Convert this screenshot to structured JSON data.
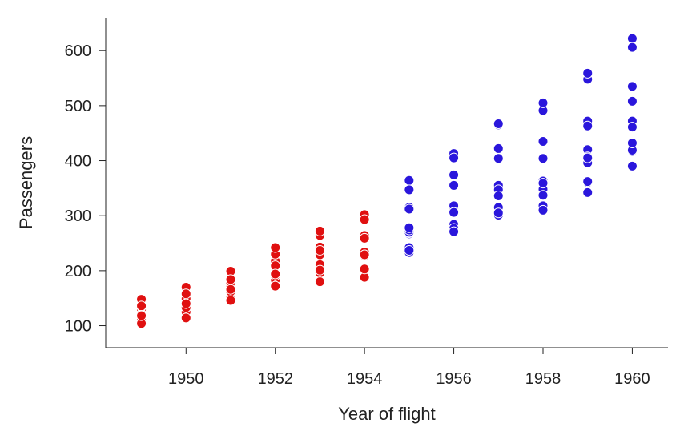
{
  "chart_data": {
    "type": "scatter",
    "xlabel": "Year of flight",
    "ylabel": "Passengers",
    "xlim": [
      1948.2,
      1960.8
    ],
    "ylim": [
      60,
      660
    ],
    "x_ticks": [
      1950,
      1952,
      1954,
      1956,
      1958,
      1960
    ],
    "y_ticks": [
      100,
      200,
      300,
      400,
      500,
      600
    ],
    "grid": false,
    "legend": "none",
    "series": [
      {
        "color": "#e01010",
        "points": [
          [
            1949,
            112
          ],
          [
            1949,
            118
          ],
          [
            1949,
            132
          ],
          [
            1949,
            129
          ],
          [
            1949,
            121
          ],
          [
            1949,
            135
          ],
          [
            1949,
            148
          ],
          [
            1949,
            148
          ],
          [
            1949,
            136
          ],
          [
            1949,
            119
          ],
          [
            1949,
            104
          ],
          [
            1949,
            118
          ],
          [
            1950,
            115
          ],
          [
            1950,
            126
          ],
          [
            1950,
            141
          ],
          [
            1950,
            135
          ],
          [
            1950,
            125
          ],
          [
            1950,
            149
          ],
          [
            1950,
            170
          ],
          [
            1950,
            170
          ],
          [
            1950,
            158
          ],
          [
            1950,
            133
          ],
          [
            1950,
            114
          ],
          [
            1950,
            140
          ],
          [
            1951,
            145
          ],
          [
            1951,
            150
          ],
          [
            1951,
            178
          ],
          [
            1951,
            163
          ],
          [
            1951,
            172
          ],
          [
            1951,
            178
          ],
          [
            1951,
            199
          ],
          [
            1951,
            199
          ],
          [
            1951,
            184
          ],
          [
            1951,
            162
          ],
          [
            1951,
            146
          ],
          [
            1951,
            166
          ],
          [
            1952,
            171
          ],
          [
            1952,
            180
          ],
          [
            1952,
            193
          ],
          [
            1952,
            181
          ],
          [
            1952,
            183
          ],
          [
            1952,
            218
          ],
          [
            1952,
            230
          ],
          [
            1952,
            242
          ],
          [
            1952,
            209
          ],
          [
            1952,
            191
          ],
          [
            1952,
            172
          ],
          [
            1952,
            194
          ],
          [
            1953,
            196
          ],
          [
            1953,
            196
          ],
          [
            1953,
            236
          ],
          [
            1953,
            235
          ],
          [
            1953,
            229
          ],
          [
            1953,
            243
          ],
          [
            1953,
            264
          ],
          [
            1953,
            272
          ],
          [
            1953,
            237
          ],
          [
            1953,
            211
          ],
          [
            1953,
            180
          ],
          [
            1953,
            201
          ],
          [
            1954,
            204
          ],
          [
            1954,
            188
          ],
          [
            1954,
            235
          ],
          [
            1954,
            227
          ],
          [
            1954,
            234
          ],
          [
            1954,
            264
          ],
          [
            1954,
            302
          ],
          [
            1954,
            293
          ],
          [
            1954,
            259
          ],
          [
            1954,
            229
          ],
          [
            1954,
            203
          ],
          [
            1954,
            229
          ]
        ]
      },
      {
        "color": "#2a16dc",
        "points": [
          [
            1955,
            242
          ],
          [
            1955,
            233
          ],
          [
            1955,
            267
          ],
          [
            1955,
            269
          ],
          [
            1955,
            270
          ],
          [
            1955,
            315
          ],
          [
            1955,
            364
          ],
          [
            1955,
            347
          ],
          [
            1955,
            312
          ],
          [
            1955,
            274
          ],
          [
            1955,
            237
          ],
          [
            1955,
            278
          ],
          [
            1956,
            284
          ],
          [
            1956,
            277
          ],
          [
            1956,
            317
          ],
          [
            1956,
            313
          ],
          [
            1956,
            318
          ],
          [
            1956,
            374
          ],
          [
            1956,
            413
          ],
          [
            1956,
            405
          ],
          [
            1956,
            355
          ],
          [
            1956,
            306
          ],
          [
            1956,
            271
          ],
          [
            1956,
            306
          ],
          [
            1957,
            315
          ],
          [
            1957,
            301
          ],
          [
            1957,
            356
          ],
          [
            1957,
            348
          ],
          [
            1957,
            355
          ],
          [
            1957,
            422
          ],
          [
            1957,
            465
          ],
          [
            1957,
            467
          ],
          [
            1957,
            404
          ],
          [
            1957,
            347
          ],
          [
            1957,
            305
          ],
          [
            1957,
            336
          ],
          [
            1958,
            340
          ],
          [
            1958,
            318
          ],
          [
            1958,
            362
          ],
          [
            1958,
            348
          ],
          [
            1958,
            363
          ],
          [
            1958,
            435
          ],
          [
            1958,
            491
          ],
          [
            1958,
            505
          ],
          [
            1958,
            404
          ],
          [
            1958,
            359
          ],
          [
            1958,
            310
          ],
          [
            1958,
            337
          ],
          [
            1959,
            360
          ],
          [
            1959,
            342
          ],
          [
            1959,
            406
          ],
          [
            1959,
            396
          ],
          [
            1959,
            420
          ],
          [
            1959,
            472
          ],
          [
            1959,
            548
          ],
          [
            1959,
            559
          ],
          [
            1959,
            463
          ],
          [
            1959,
            407
          ],
          [
            1959,
            362
          ],
          [
            1959,
            405
          ],
          [
            1960,
            417
          ],
          [
            1960,
            391
          ],
          [
            1960,
            419
          ],
          [
            1960,
            461
          ],
          [
            1960,
            472
          ],
          [
            1960,
            535
          ],
          [
            1960,
            622
          ],
          [
            1960,
            606
          ],
          [
            1960,
            508
          ],
          [
            1960,
            461
          ],
          [
            1960,
            390
          ],
          [
            1960,
            432
          ]
        ]
      }
    ]
  }
}
